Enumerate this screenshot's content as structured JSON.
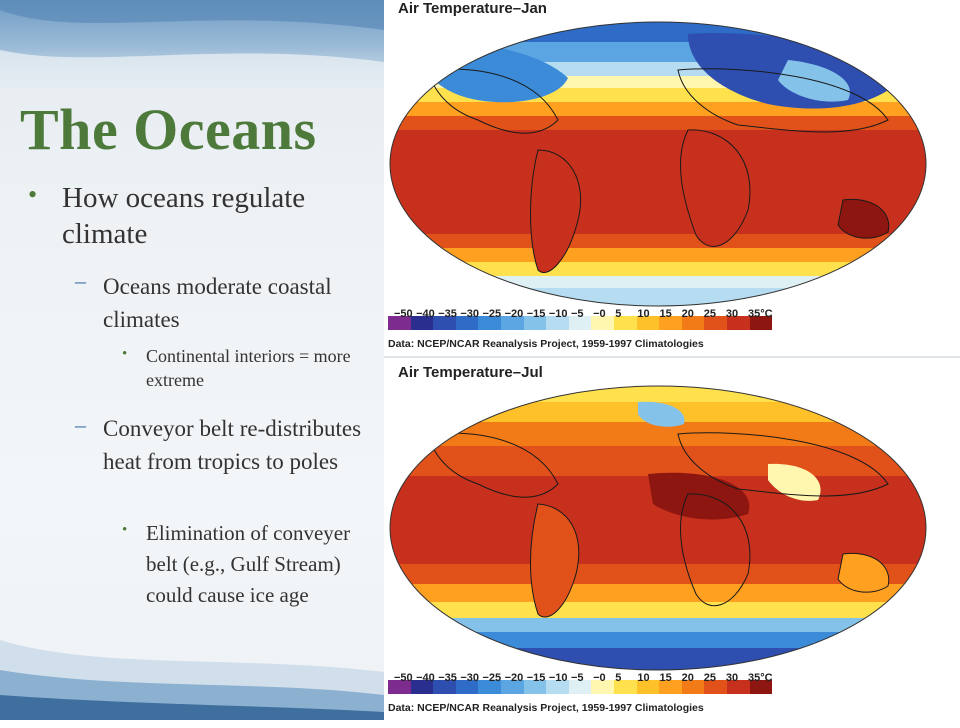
{
  "slide": {
    "title": "The Oceans",
    "bullets": [
      {
        "level": 1,
        "text": "How oceans regulate climate"
      },
      {
        "level": 2,
        "text": "Oceans moderate coastal climates"
      },
      {
        "level": 3,
        "text": "Continental interiors = more extreme"
      },
      {
        "level": 2,
        "text": "Conveyor belt re-distributes heat from tropics to poles"
      },
      {
        "level": 3,
        "text": "Elimination of conveyer belt (e.g., Gulf Stream) could cause ice age"
      }
    ]
  },
  "maps": [
    {
      "title": "Air Temperature–Jan",
      "credit": "Data: NCEP/NCAR Reanalysis Project, 1959-1997 Climatologies"
    },
    {
      "title": "Air Temperature–Jul",
      "credit": "Data: NCEP/NCAR Reanalysis Project, 1959-1997 Climatologies"
    }
  ],
  "legend": {
    "ticks": [
      "−50",
      "−40",
      "−35",
      "−30",
      "−25",
      "−20",
      "−15",
      "−10",
      "−5",
      "−0",
      "5",
      "10",
      "15",
      "20",
      "25",
      "30",
      "35°C"
    ],
    "colors": [
      "#7d2b8e",
      "#2a2f8f",
      "#2e4eb0",
      "#2f6cc8",
      "#3c8bd9",
      "#5ba6e2",
      "#85c2ea",
      "#b5dcf0",
      "#dff0f5",
      "#fff7b0",
      "#ffe14d",
      "#ffc12a",
      "#ffa020",
      "#f27a17",
      "#e1521a",
      "#c6301c",
      "#8e1611"
    ]
  },
  "colors": {
    "title": "#4d7a3b",
    "bullet_l1": "#4d7a3b",
    "bullet_l2": "#3b72a8",
    "text": "#333333"
  }
}
